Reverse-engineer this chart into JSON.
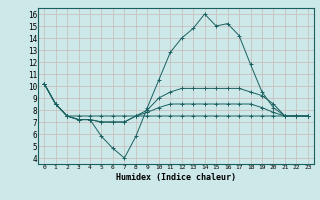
{
  "xlabel": "Humidex (Indice chaleur)",
  "background_color": "#cde8e8",
  "grid_color": "#c8b8b8",
  "line_color": "#1a6060",
  "xlim": [
    -0.5,
    23.5
  ],
  "ylim": [
    3.5,
    16.5
  ],
  "xticks": [
    0,
    1,
    2,
    3,
    4,
    5,
    6,
    7,
    8,
    9,
    10,
    11,
    12,
    13,
    14,
    15,
    16,
    17,
    18,
    19,
    20,
    21,
    22,
    23
  ],
  "yticks": [
    4,
    5,
    6,
    7,
    8,
    9,
    10,
    11,
    12,
    13,
    14,
    15,
    16
  ],
  "series": [
    [
      10.2,
      8.5,
      7.5,
      7.2,
      7.2,
      5.8,
      4.8,
      4.0,
      5.8,
      8.2,
      10.5,
      12.8,
      14.0,
      14.8,
      16.0,
      15.0,
      15.2,
      14.2,
      11.8,
      9.5,
      8.2,
      7.5,
      7.5,
      7.5
    ],
    [
      10.2,
      8.5,
      7.5,
      7.2,
      7.2,
      7.0,
      7.0,
      7.0,
      7.5,
      8.0,
      9.0,
      9.5,
      9.8,
      9.8,
      9.8,
      9.8,
      9.8,
      9.8,
      9.5,
      9.2,
      8.5,
      7.5,
      7.5,
      7.5
    ],
    [
      10.2,
      8.5,
      7.5,
      7.5,
      7.5,
      7.5,
      7.5,
      7.5,
      7.5,
      7.5,
      7.5,
      7.5,
      7.5,
      7.5,
      7.5,
      7.5,
      7.5,
      7.5,
      7.5,
      7.5,
      7.5,
      7.5,
      7.5,
      7.5
    ],
    [
      10.2,
      8.5,
      7.5,
      7.2,
      7.2,
      7.0,
      7.0,
      7.0,
      7.5,
      7.8,
      8.2,
      8.5,
      8.5,
      8.5,
      8.5,
      8.5,
      8.5,
      8.5,
      8.5,
      8.2,
      7.8,
      7.5,
      7.5,
      7.5
    ]
  ]
}
